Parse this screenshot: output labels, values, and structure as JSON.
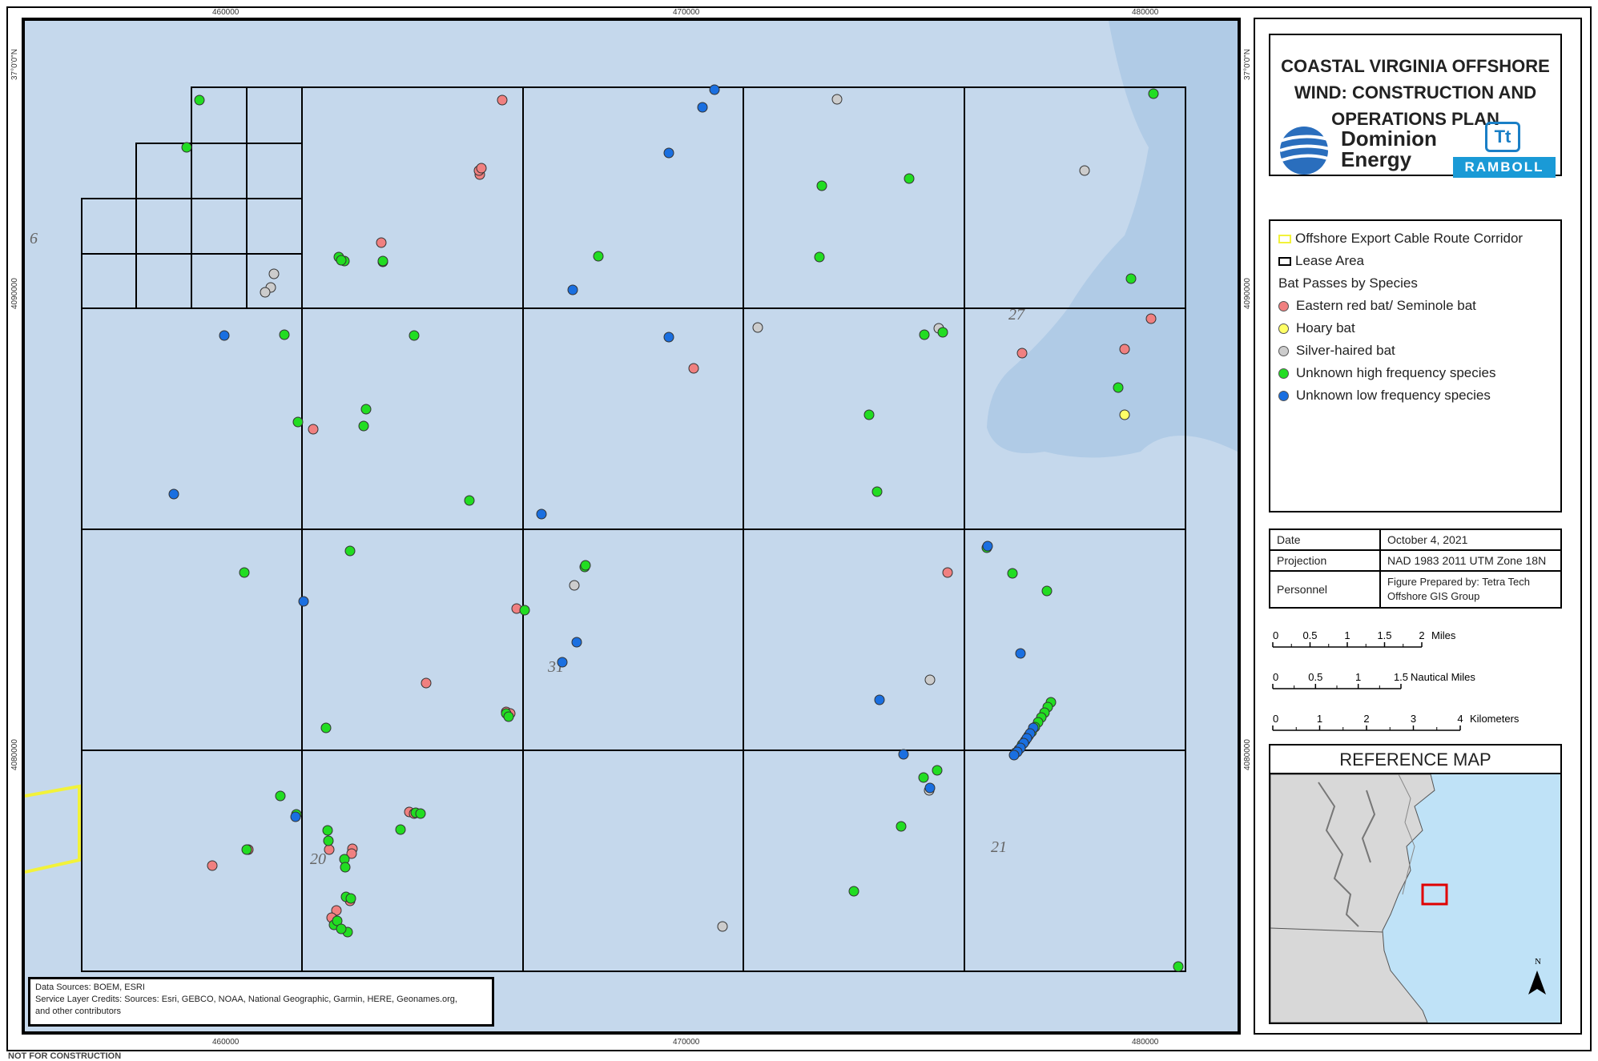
{
  "title": "COASTAL VIRGINIA OFFSHORE\nWIND: CONSTRUCTION AND\nOPERATIONS PLAN",
  "logos": {
    "dominion": "Dominion\nEnergy",
    "dominion_reg": "®",
    "tetra_mark": "Tt",
    "ramboll": "RAMBOLL"
  },
  "legend": {
    "cable_corridor": "Offshore Export Cable Route Corridor",
    "lease_area": "Lease Area",
    "bat_header": "Bat Passes by Species",
    "species": [
      {
        "label": "Eastern red bat/ Seminole bat",
        "color": "#f08080"
      },
      {
        "label": "Hoary bat",
        "color": "#ffff66"
      },
      {
        "label": "Silver-haired bat",
        "color": "#cccccc"
      },
      {
        "label": "Unknown high frequency species",
        "color": "#22dd22"
      },
      {
        "label": "Unknown low frequency species",
        "color": "#1a6fe0"
      }
    ]
  },
  "info": {
    "date_label": "Date",
    "date_value": "October 4, 2021",
    "projection_label": "Projection",
    "projection_value": "NAD 1983 2011 UTM Zone 18N",
    "personnel_label": "Personnel",
    "personnel_value": "Figure Prepared by: Tetra Tech\nOffshore GIS Group"
  },
  "scales": [
    {
      "ticks": [
        "0",
        "0.5",
        "1",
        "1.5",
        "2"
      ],
      "unit": "Miles"
    },
    {
      "ticks": [
        "0",
        "0.5",
        "1",
        "1.5"
      ],
      "unit": "Nautical Miles"
    },
    {
      "ticks": [
        "0",
        "1",
        "2",
        "3",
        "4"
      ],
      "unit": "Kilometers"
    }
  ],
  "reference_map": {
    "title": "REFERENCE MAP",
    "north": "N"
  },
  "credits": {
    "line1": "Data Sources: BOEM, ESRI",
    "line2": "Service Layer Credits: Sources: Esri, GEBCO, NOAA, National Geographic, Garmin, HERE, Geonames.org,",
    "line3": "and other contributors"
  },
  "not_for_construction": "NOT FOR CONSTRUCTION",
  "coords": {
    "top": [
      "460000",
      "470000",
      "480000"
    ],
    "bottom": [
      "460000",
      "470000",
      "480000"
    ],
    "left_lat": "37°0'0\"N",
    "right_lat": "37°0'0\"N",
    "left": [
      "4090000",
      "4080000"
    ],
    "right": [
      "4090000",
      "4080000"
    ]
  },
  "block_labels": {
    "b6": "6",
    "b27": "27",
    "b31": "31",
    "b20": "20",
    "b21": "21"
  },
  "points": {
    "red": [
      [
        623,
        121
      ],
      [
        595,
        214
      ],
      [
        594,
        209
      ],
      [
        597,
        206
      ],
      [
        474,
        323
      ],
      [
        387,
        532
      ],
      [
        528,
        849
      ],
      [
        261,
        1077
      ],
      [
        306,
        1057
      ],
      [
        407,
        1057
      ],
      [
        436,
        1056
      ],
      [
        435,
        1062
      ],
      [
        433,
        1121
      ],
      [
        416,
        1133
      ],
      [
        410,
        1142
      ],
      [
        507,
        1010
      ],
      [
        513,
        1012
      ],
      [
        472,
        299
      ],
      [
        628,
        885
      ],
      [
        633,
        887
      ],
      [
        862,
        456
      ],
      [
        1179,
        711
      ],
      [
        1272,
        437
      ],
      [
        1400,
        432
      ],
      [
        1433,
        394
      ],
      [
        641,
        756
      ]
    ],
    "green": [
      [
        245,
        121
      ],
      [
        229,
        180
      ],
      [
        351,
        414
      ],
      [
        368,
        523
      ],
      [
        513,
        415
      ],
      [
        433,
        684
      ],
      [
        450,
        528
      ],
      [
        453,
        507
      ],
      [
        301,
        711
      ],
      [
        582,
        621
      ],
      [
        743,
        316
      ],
      [
        726,
        704
      ],
      [
        727,
        702
      ],
      [
        651,
        758
      ],
      [
        628,
        887
      ],
      [
        406,
        1046
      ],
      [
        631,
        891
      ],
      [
        403,
        905
      ],
      [
        346,
        990
      ],
      [
        366,
        1013
      ],
      [
        405,
        1033
      ],
      [
        426,
        1069
      ],
      [
        427,
        1079
      ],
      [
        428,
        1116
      ],
      [
        434,
        1118
      ],
      [
        430,
        1160
      ],
      [
        413,
        1151
      ],
      [
        417,
        1146
      ],
      [
        422,
        1156
      ],
      [
        304,
        1057
      ],
      [
        496,
        1032
      ],
      [
        515,
        1011
      ],
      [
        521,
        1012
      ],
      [
        1022,
        228
      ],
      [
        1131,
        219
      ],
      [
        1019,
        317
      ],
      [
        1150,
        414
      ],
      [
        1173,
        411
      ],
      [
        1081,
        514
      ],
      [
        1091,
        610
      ],
      [
        1436,
        113
      ],
      [
        1392,
        480
      ],
      [
        1408,
        344
      ],
      [
        1228,
        680
      ],
      [
        1260,
        712
      ],
      [
        1303,
        734
      ],
      [
        1121,
        1028
      ],
      [
        1149,
        967
      ],
      [
        1166,
        958
      ],
      [
        1062,
        1109
      ],
      [
        1467,
        1203
      ],
      [
        419,
        317
      ],
      [
        426,
        322
      ],
      [
        474,
        322
      ],
      [
        422,
        321
      ]
    ],
    "gray": [
      [
        1041,
        120
      ],
      [
        1350,
        209
      ],
      [
        338,
        338
      ],
      [
        334,
        355
      ],
      [
        327,
        361
      ],
      [
        942,
        405
      ],
      [
        1168,
        406
      ],
      [
        713,
        727
      ],
      [
        1157,
        845
      ],
      [
        898,
        1153
      ],
      [
        1156,
        983
      ]
    ],
    "blue": [
      [
        888,
        108
      ],
      [
        873,
        130
      ],
      [
        831,
        187
      ],
      [
        711,
        358
      ],
      [
        276,
        415
      ],
      [
        831,
        417
      ],
      [
        213,
        613
      ],
      [
        672,
        638
      ],
      [
        375,
        747
      ],
      [
        716,
        798
      ],
      [
        698,
        823
      ],
      [
        1094,
        870
      ],
      [
        1124,
        938
      ],
      [
        1270,
        812
      ],
      [
        1157,
        980
      ],
      [
        1229,
        678
      ],
      [
        365,
        1016
      ]
    ],
    "yellow": [
      [
        1400,
        514
      ]
    ],
    "line_green": [
      [
        1308,
        873
      ],
      [
        1304,
        879
      ],
      [
        1300,
        886
      ],
      [
        1296,
        892
      ],
      [
        1292,
        898
      ],
      [
        1288,
        904
      ],
      [
        1284,
        910
      ],
      [
        1280,
        915
      ],
      [
        1276,
        921
      ],
      [
        1272,
        926
      ],
      [
        1268,
        932
      ],
      [
        1264,
        936
      ]
    ],
    "line_blue": [
      [
        1286,
        905
      ],
      [
        1282,
        912
      ],
      [
        1278,
        918
      ],
      [
        1274,
        924
      ],
      [
        1270,
        930
      ],
      [
        1266,
        935
      ],
      [
        1262,
        939
      ]
    ]
  }
}
